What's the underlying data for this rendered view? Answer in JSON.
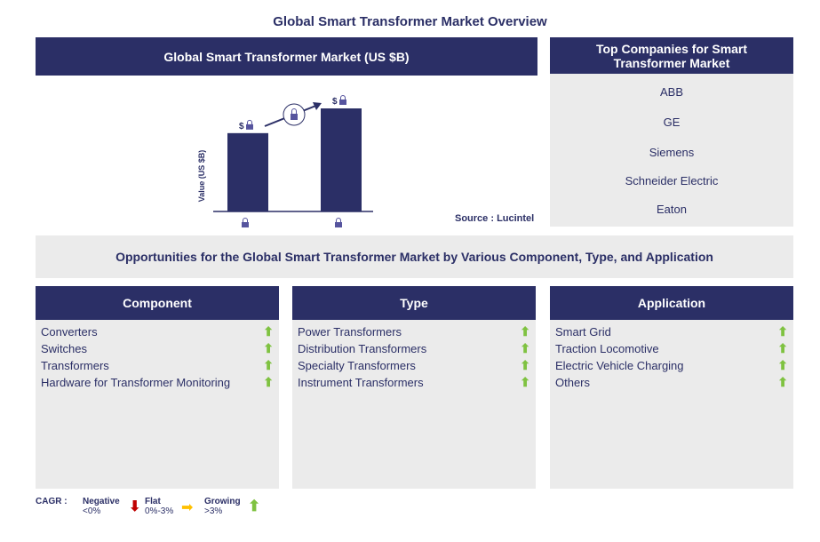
{
  "title": "Global Smart Transformer Market Overview",
  "chart_panel": {
    "header": "Global Smart Transformer Market (US $B)",
    "source": "Source : Lucintel"
  },
  "chart_data": {
    "type": "bar",
    "title": "Global Smart Transformer Market (US $B)",
    "ylabel": "Value (US $B)",
    "categories": [
      "locked",
      "locked"
    ],
    "values": [
      0.76,
      1.0
    ],
    "data_labels": [
      "$",
      "$"
    ],
    "note": "values hidden (locked)",
    "colors": {
      "bar": "#2b2f66"
    }
  },
  "companies": {
    "header": "Top Companies for Smart Transformer Market",
    "items": [
      "ABB",
      "GE",
      "Siemens",
      "Schneider Electric",
      "Eaton"
    ]
  },
  "opportunities": "Opportunities for the Global Smart Transformer Market by Various Component, Type, and Application",
  "segments": [
    {
      "header": "Component",
      "items": [
        "Converters",
        "Switches",
        "Transformers",
        "Hardware for Transformer Monitoring"
      ]
    },
    {
      "header": "Type",
      "items": [
        "Power Transformers",
        "Distribution Transformers",
        "Specialty Transformers",
        "Instrument Transformers"
      ]
    },
    {
      "header": "Application",
      "items": [
        "Smart Grid",
        "Traction Locomotive",
        "Electric Vehicle Charging",
        "Others"
      ]
    }
  ],
  "legend": {
    "label": "CAGR :",
    "negative": "Negative",
    "negative_range": "<0%",
    "flat": "Flat",
    "flat_range": "0%-3%",
    "growing": "Growing",
    "growing_range": ">3%"
  },
  "colors": {
    "navy": "#2b2f66",
    "panel": "#ebebeb",
    "growing": "#7fc241",
    "flat": "#ffc000",
    "negative": "#c00000"
  }
}
